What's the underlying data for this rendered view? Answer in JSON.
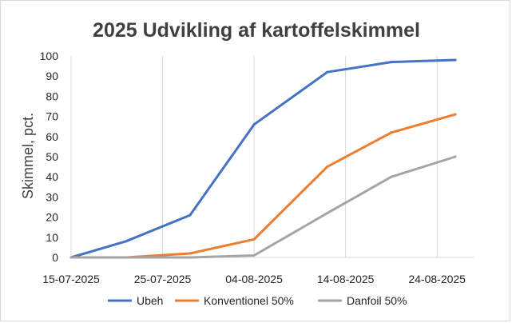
{
  "chart_data": {
    "type": "line",
    "title": "2025 Udvikling af kartoffelskimmel",
    "xlabel": "",
    "ylabel": "Skimmel, pct.",
    "xlim": [
      "2025-07-15",
      "2025-08-28"
    ],
    "ylim": [
      0,
      100
    ],
    "y_ticks": [
      0,
      10,
      20,
      30,
      40,
      50,
      60,
      70,
      80,
      90,
      100
    ],
    "x_tick_labels": [
      "15-07-2025",
      "25-07-2025",
      "04-08-2025",
      "14-08-2025",
      "24-08-2025"
    ],
    "x_tick_dates": [
      "2025-07-15",
      "2025-07-25",
      "2025-08-04",
      "2025-08-14",
      "2025-08-24"
    ],
    "grid": "vertical",
    "legend_position": "bottom",
    "series": [
      {
        "name": "Ubeh",
        "color": "#4472c4",
        "x": [
          "2025-07-15",
          "2025-07-21",
          "2025-07-28",
          "2025-08-04",
          "2025-08-12",
          "2025-08-19",
          "2025-08-26"
        ],
        "y": [
          0,
          8,
          21,
          66,
          92,
          97,
          98
        ]
      },
      {
        "name": "Konventionel 50%",
        "color": "#ed7d31",
        "x": [
          "2025-07-15",
          "2025-07-21",
          "2025-07-28",
          "2025-08-04",
          "2025-08-12",
          "2025-08-19",
          "2025-08-26"
        ],
        "y": [
          0,
          0,
          2,
          9,
          45,
          62,
          71
        ]
      },
      {
        "name": "Danfoil 50%",
        "color": "#a5a5a5",
        "x": [
          "2025-07-15",
          "2025-07-21",
          "2025-07-28",
          "2025-08-04",
          "2025-08-12",
          "2025-08-19",
          "2025-08-26"
        ],
        "y": [
          0,
          0,
          0,
          1,
          22,
          40,
          50
        ]
      }
    ]
  }
}
